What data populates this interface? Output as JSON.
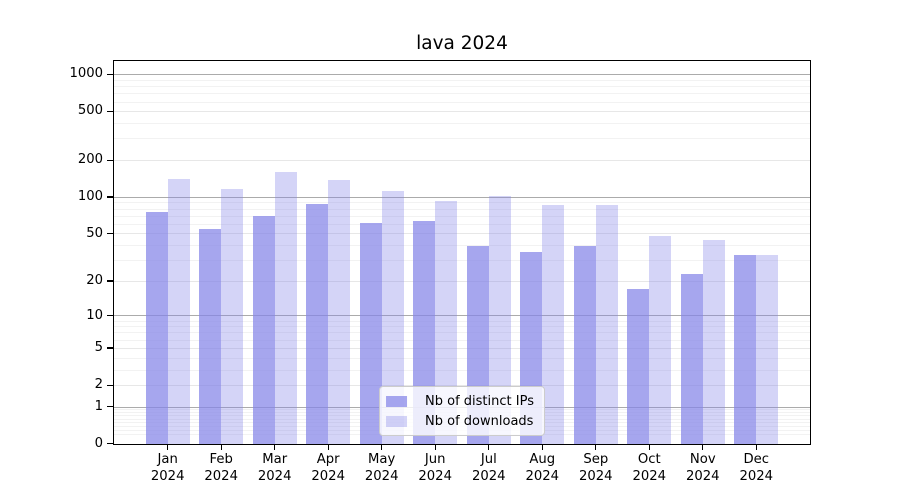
{
  "chart_data": {
    "type": "bar",
    "title": "lava 2024",
    "categories": [
      "Jan",
      "Feb",
      "Mar",
      "Apr",
      "May",
      "Jun",
      "Jul",
      "Aug",
      "Sep",
      "Oct",
      "Nov",
      "Dec"
    ],
    "year_label": "2024",
    "series": [
      {
        "name": "Nb of distinct IPs",
        "color": "rgba(132,132,232,0.72)",
        "values": [
          75,
          54,
          70,
          87,
          61,
          63,
          39,
          35,
          39,
          17,
          23,
          33
        ]
      },
      {
        "name": "Nb of downloads",
        "color": "rgba(132,132,232,0.35)",
        "values": [
          140,
          115,
          161,
          137,
          112,
          93,
          102,
          85,
          86,
          48,
          44,
          33
        ]
      }
    ],
    "yscale": "log1p",
    "yticks": [
      0,
      1,
      2,
      5,
      10,
      20,
      50,
      100,
      200,
      500,
      1000
    ],
    "ylim": [
      0,
      1280
    ],
    "xlabel": "",
    "ylabel": "",
    "grid": true,
    "legend_position": "lower center",
    "colors": {
      "axis": "#000000",
      "grid_power10": "#ababab",
      "grid_major": "#e7e7e7",
      "grid_minor": "#f2f2f2",
      "background": "#ffffff",
      "legend_bg": "rgba(255,255,255,0.8)",
      "legend_border": "#cccccc"
    }
  }
}
